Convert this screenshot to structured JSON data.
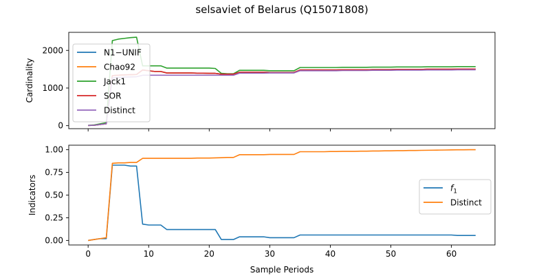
{
  "figure": {
    "title": "selsaviet of Belarus (Q15071808)"
  },
  "chart_data": [
    {
      "type": "line",
      "title": "",
      "xlabel": "",
      "ylabel": "Cardinality",
      "xlim": [
        -3.2,
        67.2
      ],
      "ylim": [
        -80,
        2480
      ],
      "xticks": [
        0,
        10,
        20,
        30,
        40,
        50,
        60
      ],
      "yticks": [
        0,
        1000,
        2000
      ],
      "tick_labels_x_visible": false,
      "grid": false,
      "legend": "upper-left",
      "x": [
        0,
        1,
        2,
        3,
        4,
        5,
        6,
        7,
        8,
        9,
        10,
        11,
        12,
        13,
        14,
        15,
        16,
        17,
        18,
        19,
        20,
        21,
        22,
        23,
        24,
        25,
        26,
        27,
        28,
        29,
        30,
        31,
        32,
        33,
        34,
        35,
        36,
        37,
        38,
        39,
        40,
        41,
        42,
        43,
        44,
        45,
        46,
        47,
        48,
        49,
        50,
        51,
        52,
        53,
        54,
        55,
        56,
        57,
        58,
        59,
        60,
        61,
        62,
        63,
        64
      ],
      "series": [
        {
          "name": "N1−UNIF",
          "color": "#1f77b4",
          "values": [
            5,
            10,
            30,
            50,
            1330,
            1340,
            1350,
            1355,
            1360,
            1480,
            1460,
            1440,
            1440,
            1400,
            1400,
            1400,
            1400,
            1400,
            1395,
            1395,
            1390,
            1390,
            1370,
            1370,
            1370,
            1420,
            1420,
            1420,
            1420,
            1420,
            1415,
            1415,
            1415,
            1415,
            1415,
            1480,
            1480,
            1480,
            1480,
            1480,
            1480,
            1480,
            1485,
            1485,
            1485,
            1485,
            1485,
            1490,
            1490,
            1490,
            1490,
            1495,
            1495,
            1495,
            1495,
            1495,
            1500,
            1500,
            1500,
            1500,
            1500,
            1505,
            1505,
            1505,
            1505
          ]
        },
        {
          "name": "Chao92",
          "color": "#ff7f0e",
          "values": [
            5,
            10,
            30,
            50,
            1330,
            1340,
            1350,
            1355,
            1360,
            1480,
            1460,
            1440,
            1440,
            1400,
            1400,
            1400,
            1400,
            1400,
            1395,
            1395,
            1390,
            1390,
            1370,
            1370,
            1370,
            1420,
            1420,
            1420,
            1420,
            1420,
            1415,
            1415,
            1415,
            1415,
            1415,
            1480,
            1480,
            1480,
            1480,
            1480,
            1480,
            1480,
            1485,
            1485,
            1485,
            1485,
            1485,
            1490,
            1490,
            1490,
            1490,
            1495,
            1495,
            1495,
            1495,
            1495,
            1500,
            1500,
            1500,
            1500,
            1500,
            1505,
            1505,
            1505,
            1505
          ]
        },
        {
          "name": "Jack1",
          "color": "#2ca02c",
          "values": [
            8,
            20,
            50,
            80,
            2260,
            2300,
            2320,
            2340,
            2350,
            1590,
            1590,
            1590,
            1590,
            1530,
            1530,
            1530,
            1530,
            1530,
            1530,
            1530,
            1530,
            1520,
            1390,
            1380,
            1380,
            1470,
            1470,
            1470,
            1470,
            1470,
            1460,
            1460,
            1460,
            1460,
            1460,
            1545,
            1545,
            1545,
            1545,
            1545,
            1545,
            1545,
            1550,
            1550,
            1550,
            1550,
            1550,
            1555,
            1555,
            1555,
            1555,
            1560,
            1560,
            1560,
            1560,
            1560,
            1565,
            1565,
            1565,
            1565,
            1565,
            1570,
            1570,
            1570,
            1570
          ]
        },
        {
          "name": "SOR",
          "color": "#d62728",
          "values": [
            5,
            10,
            30,
            50,
            1330,
            1340,
            1350,
            1355,
            1360,
            1480,
            1460,
            1440,
            1440,
            1400,
            1400,
            1400,
            1400,
            1400,
            1395,
            1395,
            1390,
            1390,
            1370,
            1370,
            1370,
            1420,
            1420,
            1420,
            1420,
            1420,
            1415,
            1415,
            1415,
            1415,
            1415,
            1480,
            1480,
            1480,
            1480,
            1480,
            1480,
            1480,
            1485,
            1485,
            1485,
            1485,
            1485,
            1490,
            1490,
            1490,
            1490,
            1495,
            1495,
            1495,
            1495,
            1495,
            1500,
            1500,
            1500,
            1500,
            1500,
            1505,
            1505,
            1505,
            1505
          ]
        },
        {
          "name": "Distinct",
          "color": "#9467bd",
          "values": [
            5,
            10,
            30,
            50,
            1270,
            1280,
            1290,
            1295,
            1300,
            1340,
            1340,
            1340,
            1340,
            1340,
            1340,
            1340,
            1340,
            1340,
            1340,
            1340,
            1340,
            1340,
            1340,
            1340,
            1340,
            1395,
            1395,
            1395,
            1395,
            1395,
            1400,
            1400,
            1400,
            1400,
            1400,
            1460,
            1460,
            1460,
            1460,
            1460,
            1460,
            1460,
            1465,
            1465,
            1465,
            1465,
            1465,
            1470,
            1470,
            1470,
            1470,
            1475,
            1475,
            1475,
            1475,
            1475,
            1480,
            1480,
            1480,
            1480,
            1480,
            1485,
            1485,
            1485,
            1485
          ]
        }
      ]
    },
    {
      "type": "line",
      "title": "",
      "xlabel": "Sample Periods",
      "ylabel": "Indicators",
      "xlim": [
        -3.2,
        67.2
      ],
      "ylim": [
        -0.05,
        1.05
      ],
      "xticks": [
        0,
        10,
        20,
        30,
        40,
        50,
        60
      ],
      "yticks": [
        0.0,
        0.25,
        0.5,
        0.75,
        1.0
      ],
      "ytick_labels": [
        "0.00",
        "0.25",
        "0.50",
        "0.75",
        "1.00"
      ],
      "grid": false,
      "legend": "center-right",
      "x": [
        0,
        1,
        2,
        3,
        4,
        5,
        6,
        7,
        8,
        9,
        10,
        11,
        12,
        13,
        14,
        15,
        16,
        17,
        18,
        19,
        20,
        21,
        22,
        23,
        24,
        25,
        26,
        27,
        28,
        29,
        30,
        31,
        32,
        33,
        34,
        35,
        36,
        37,
        38,
        39,
        40,
        41,
        42,
        43,
        44,
        45,
        46,
        47,
        48,
        49,
        50,
        51,
        52,
        53,
        54,
        55,
        56,
        57,
        58,
        59,
        60,
        61,
        62,
        63,
        64
      ],
      "series": [
        {
          "name": "f",
          "name_sub": "1",
          "color": "#1f77b4",
          "values": [
            0.0,
            0.01,
            0.02,
            0.02,
            0.83,
            0.83,
            0.83,
            0.82,
            0.82,
            0.18,
            0.17,
            0.17,
            0.17,
            0.12,
            0.12,
            0.12,
            0.12,
            0.12,
            0.12,
            0.12,
            0.12,
            0.12,
            0.01,
            0.01,
            0.01,
            0.04,
            0.04,
            0.04,
            0.04,
            0.04,
            0.03,
            0.03,
            0.03,
            0.03,
            0.03,
            0.06,
            0.06,
            0.06,
            0.06,
            0.06,
            0.06,
            0.06,
            0.06,
            0.06,
            0.06,
            0.06,
            0.06,
            0.06,
            0.06,
            0.06,
            0.06,
            0.06,
            0.06,
            0.06,
            0.06,
            0.06,
            0.06,
            0.06,
            0.06,
            0.06,
            0.06,
            0.055,
            0.055,
            0.055,
            0.055
          ]
        },
        {
          "name": "Distinct",
          "color": "#ff7f0e",
          "values": [
            0.0,
            0.01,
            0.02,
            0.03,
            0.85,
            0.855,
            0.855,
            0.86,
            0.86,
            0.905,
            0.905,
            0.905,
            0.905,
            0.905,
            0.905,
            0.905,
            0.905,
            0.905,
            0.908,
            0.908,
            0.908,
            0.91,
            0.912,
            0.915,
            0.915,
            0.945,
            0.945,
            0.945,
            0.945,
            0.945,
            0.948,
            0.948,
            0.948,
            0.948,
            0.948,
            0.978,
            0.978,
            0.978,
            0.978,
            0.978,
            0.98,
            0.98,
            0.982,
            0.982,
            0.982,
            0.984,
            0.984,
            0.986,
            0.986,
            0.988,
            0.988,
            0.99,
            0.99,
            0.992,
            0.992,
            0.993,
            0.994,
            0.995,
            0.996,
            0.997,
            0.998,
            0.999,
            0.999,
            1.0,
            1.0
          ]
        }
      ]
    }
  ]
}
